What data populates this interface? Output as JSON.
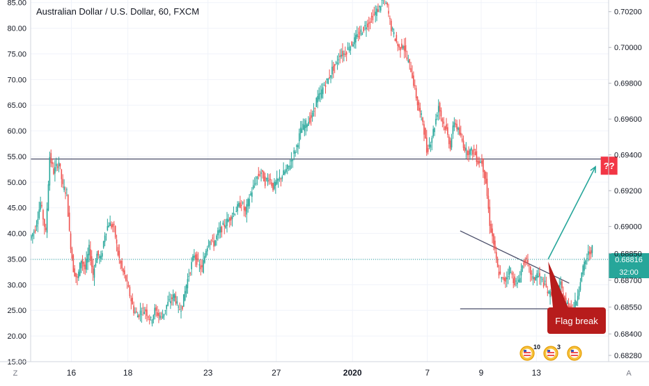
{
  "chart_data": {
    "type": "candlestick",
    "title": "Australian Dollar / U.S. Dollar, 60, FXCM",
    "left_axis": {
      "range": [
        15,
        85.5
      ],
      "ticks": [
        "15.00",
        "20.00",
        "25.00",
        "30.00",
        "35.00",
        "40.00",
        "45.00",
        "50.00",
        "55.00",
        "60.00",
        "65.00",
        "70.00",
        "75.00",
        "80.00",
        "85.00"
      ]
    },
    "right_axis": {
      "range": [
        0.68245,
        0.70265
      ],
      "ticks": [
        "0.68280",
        "0.68400",
        "0.68550",
        "0.68700",
        "0.68850",
        "0.69000",
        "0.69200",
        "0.69400",
        "0.69600",
        "0.69800",
        "0.70000",
        "0.70200"
      ],
      "last_price": "0.68816",
      "countdown": "32:00"
    },
    "x_axis": {
      "ticks": [
        "16",
        "18",
        "23",
        "27",
        "2020",
        "7",
        "9",
        "13"
      ],
      "corner_left": "Z",
      "corner_right": "A"
    },
    "colors": {
      "up": "#26a69a",
      "down": "#ef5350",
      "line": "#4a4e69",
      "arrow": "#26a69a",
      "callout": "#b71c1c",
      "qmark": "#f23645"
    },
    "candle_path": [
      [
        0,
        39
      ],
      [
        4,
        41
      ],
      [
        8,
        46
      ],
      [
        12,
        40
      ],
      [
        15,
        55
      ],
      [
        18,
        52
      ],
      [
        22,
        54
      ],
      [
        25,
        49
      ],
      [
        28,
        48
      ],
      [
        30,
        40
      ],
      [
        33,
        33
      ],
      [
        36,
        31
      ],
      [
        39,
        35
      ],
      [
        42,
        33
      ],
      [
        45,
        37
      ],
      [
        48,
        32
      ],
      [
        51,
        36
      ],
      [
        54,
        35
      ],
      [
        57,
        40
      ],
      [
        60,
        42
      ],
      [
        64,
        41
      ],
      [
        67,
        36
      ],
      [
        70,
        33
      ],
      [
        73,
        31
      ],
      [
        76,
        28
      ],
      [
        79,
        25
      ],
      [
        82,
        24
      ],
      [
        85,
        25
      ],
      [
        88,
        25
      ],
      [
        92,
        23
      ],
      [
        95,
        25
      ],
      [
        98,
        24
      ],
      [
        101,
        24
      ],
      [
        104,
        26
      ],
      [
        107,
        27
      ],
      [
        110,
        28
      ],
      [
        113,
        25
      ],
      [
        116,
        26
      ],
      [
        119,
        30
      ],
      [
        122,
        33
      ],
      [
        125,
        36
      ],
      [
        128,
        34
      ],
      [
        131,
        33
      ],
      [
        134,
        37
      ],
      [
        137,
        39
      ],
      [
        140,
        38
      ],
      [
        143,
        40
      ],
      [
        146,
        41
      ],
      [
        149,
        42
      ],
      [
        152,
        43
      ],
      [
        155,
        44
      ],
      [
        158,
        45
      ],
      [
        161,
        46
      ],
      [
        164,
        44
      ],
      [
        167,
        47
      ],
      [
        170,
        49
      ],
      [
        173,
        51
      ],
      [
        176,
        52
      ],
      [
        179,
        50
      ],
      [
        182,
        51
      ],
      [
        185,
        49
      ],
      [
        188,
        50
      ],
      [
        191,
        51
      ],
      [
        194,
        52
      ],
      [
        197,
        53
      ],
      [
        200,
        55
      ],
      [
        203,
        57
      ],
      [
        206,
        60
      ],
      [
        209,
        61
      ],
      [
        212,
        62
      ],
      [
        215,
        63
      ],
      [
        218,
        66
      ],
      [
        221,
        67
      ],
      [
        224,
        69
      ],
      [
        227,
        70
      ],
      [
        230,
        72
      ],
      [
        233,
        73
      ],
      [
        236,
        75
      ],
      [
        239,
        75
      ],
      [
        242,
        76
      ],
      [
        245,
        77
      ],
      [
        248,
        78
      ],
      [
        251,
        79
      ],
      [
        254,
        80
      ],
      [
        257,
        81
      ],
      [
        260,
        82
      ],
      [
        263,
        83
      ],
      [
        266,
        84
      ],
      [
        269,
        86
      ],
      [
        272,
        84
      ],
      [
        275,
        80
      ],
      [
        278,
        78
      ],
      [
        281,
        76
      ],
      [
        284,
        77
      ],
      [
        287,
        74
      ],
      [
        290,
        72
      ],
      [
        293,
        68
      ],
      [
        296,
        64
      ],
      [
        299,
        62
      ],
      [
        302,
        56
      ],
      [
        305,
        58
      ],
      [
        308,
        61
      ],
      [
        311,
        65
      ],
      [
        314,
        62
      ],
      [
        317,
        60
      ],
      [
        320,
        57
      ],
      [
        323,
        62
      ],
      [
        326,
        60
      ],
      [
        329,
        58
      ],
      [
        332,
        56
      ],
      [
        335,
        56
      ],
      [
        338,
        56
      ],
      [
        341,
        54
      ],
      [
        344,
        54
      ],
      [
        347,
        50
      ],
      [
        350,
        42
      ],
      [
        353,
        38
      ],
      [
        356,
        33
      ],
      [
        359,
        31
      ],
      [
        362,
        31
      ],
      [
        365,
        33
      ],
      [
        368,
        31
      ],
      [
        371,
        30
      ],
      [
        374,
        33
      ],
      [
        377,
        35
      ],
      [
        380,
        33
      ],
      [
        383,
        31
      ],
      [
        386,
        32
      ],
      [
        389,
        31
      ],
      [
        392,
        30
      ],
      [
        395,
        28
      ],
      [
        398,
        29
      ],
      [
        401,
        28
      ],
      [
        404,
        30
      ],
      [
        407,
        27
      ],
      [
        410,
        26
      ],
      [
        413,
        25
      ],
      [
        416,
        27
      ],
      [
        419,
        31
      ],
      [
        422,
        34
      ],
      [
        425,
        36
      ],
      [
        428,
        37
      ]
    ],
    "lines": [
      {
        "from": [
          0,
          54.5
        ],
        "to": [
          440,
          54.5
        ],
        "kind": "horizontal resistance"
      },
      {
        "from": [
          327,
          40.5
        ],
        "to": [
          410,
          30.3
        ],
        "kind": "descending flag line"
      },
      {
        "from": [
          327,
          25.3
        ],
        "to": [
          396,
          25.3
        ],
        "kind": "flag support"
      }
    ],
    "arrow": {
      "from": [
        394,
        35
      ],
      "to": [
        430,
        53
      ]
    },
    "annotations": {
      "question_label": "??",
      "callout_label": "Flag break"
    },
    "badges": [
      {
        "label": "10",
        "kind": "us-flag-event"
      },
      {
        "label": "3",
        "kind": "us-flag-event"
      },
      {
        "label": "",
        "kind": "us-flag-event"
      }
    ]
  }
}
